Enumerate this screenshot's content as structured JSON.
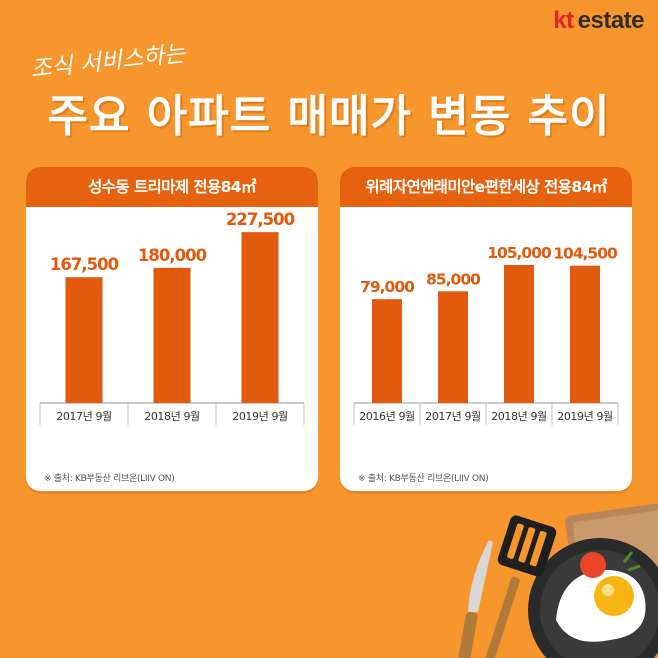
{
  "brand": {
    "kt": "kt",
    "estate": "estate"
  },
  "header": {
    "subtitle": "조식 서비스하는",
    "title": "주요 아파트 매매가 변동 추이"
  },
  "colors": {
    "background": "#F6962C",
    "bar": "#E25A0E",
    "header": "#E7620F",
    "value_label": "#E25A0E"
  },
  "chart_data": [
    {
      "type": "bar",
      "title": "성수동 트리마제 전용84㎡",
      "categories": [
        "2017년 9월",
        "2018년 9월",
        "2019년 9월"
      ],
      "values": [
        167500,
        180000,
        227500
      ],
      "labels": [
        "167,500",
        "180,000",
        "227,500"
      ],
      "source": "※ 출처: KB부동산 리브온(LIIV ON)",
      "ylim": [
        0,
        245000
      ]
    },
    {
      "type": "bar",
      "title": "위례자연앤래미안e편한세상 전용84㎡",
      "categories": [
        "2016년 9월",
        "2017년 9월",
        "2018년 9월",
        "2019년 9월"
      ],
      "values": [
        79000,
        85000,
        105000,
        104500
      ],
      "labels": [
        "79,000",
        "85,000",
        "105,000",
        "104,500"
      ],
      "source": "※ 출처: KB부동산 리브온(LIIV ON)",
      "ylim": [
        0,
        140000
      ]
    }
  ]
}
